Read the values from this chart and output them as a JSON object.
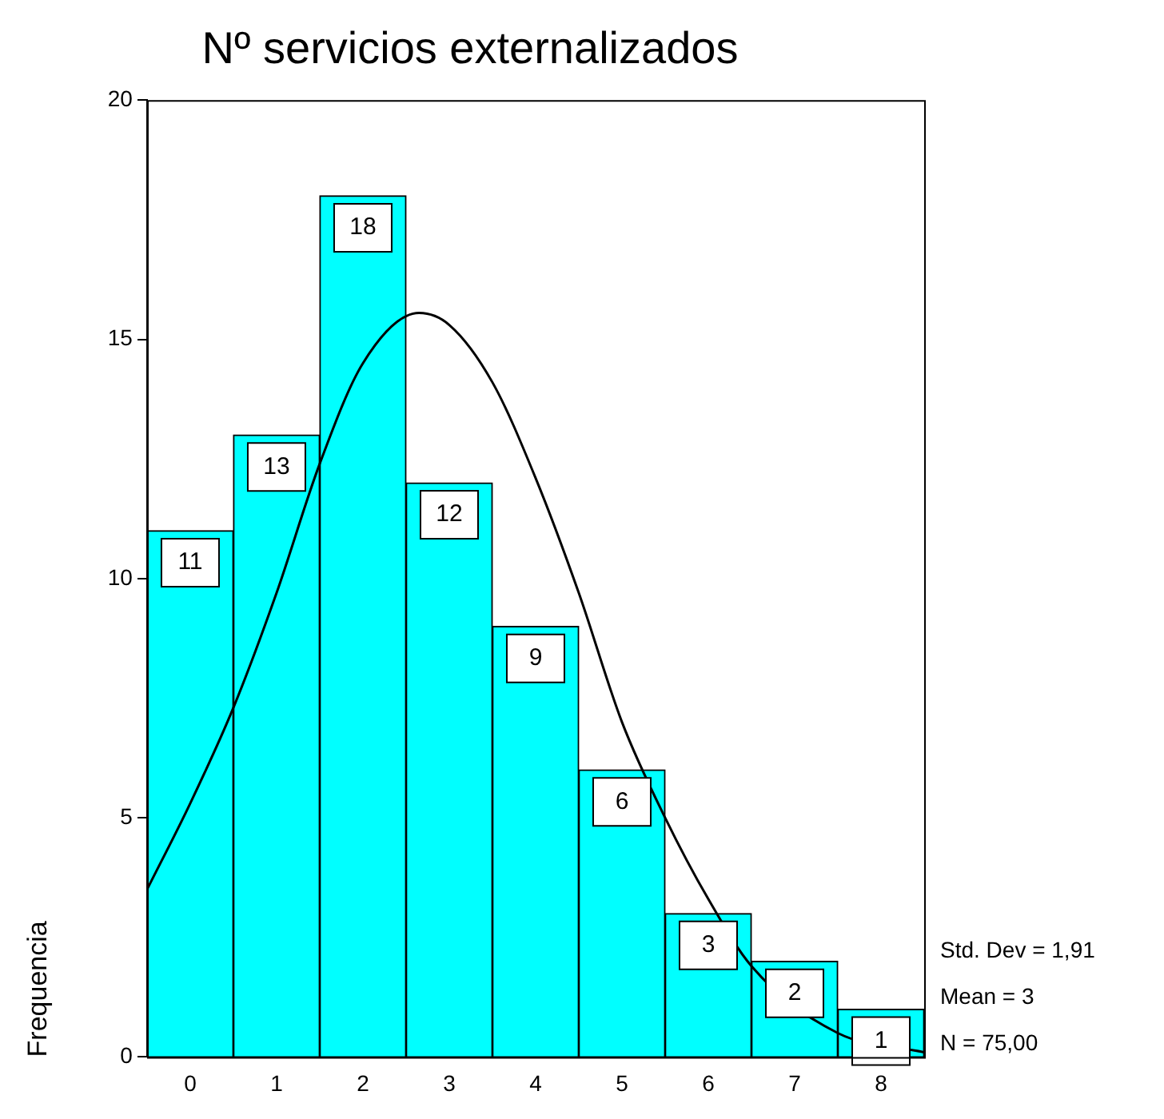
{
  "chart_data": {
    "type": "histogram",
    "title": "Nº servicios externalizados",
    "ylabel": "Frequencia",
    "bins": [
      -0.5,
      0.5,
      1.5,
      2.5,
      3.5,
      4.5,
      5.5,
      6.5,
      7.5,
      8.5
    ],
    "values": [
      11,
      13,
      18,
      12,
      9,
      6,
      3,
      2,
      1
    ],
    "color": "#00ffff",
    "value_labels": [
      "11",
      "13",
      "18",
      "12",
      "9",
      "6",
      "3",
      "2",
      "1"
    ],
    "xlim": [
      -0.5,
      8.5
    ],
    "xticks": [
      0,
      1,
      2,
      3,
      4,
      5,
      6,
      7,
      8
    ],
    "ylim": [
      0,
      20
    ],
    "yticks": [
      0,
      5,
      10,
      15,
      20
    ],
    "grid": false,
    "legend": false,
    "series": [
      {
        "type": "line",
        "color": "#000000",
        "x": [
          -0.5,
          0,
          0.5,
          1,
          1.5,
          2,
          2.65,
          3,
          3.5,
          4,
          4.5,
          5,
          5.5,
          6,
          6.5,
          7,
          7.5,
          8,
          8.5
        ],
        "values": [
          3.5,
          5.3,
          7.3,
          9.7,
          12.4,
          14.5,
          15.55,
          15.3,
          14.1,
          12.1,
          9.7,
          7.0,
          5.0,
          3.3,
          1.9,
          null,
          0.5,
          null,
          0.1
        ]
      }
    ],
    "annotations": [
      "Std. Dev = 1,91",
      "Mean = 3",
      "N = 75,00"
    ]
  }
}
